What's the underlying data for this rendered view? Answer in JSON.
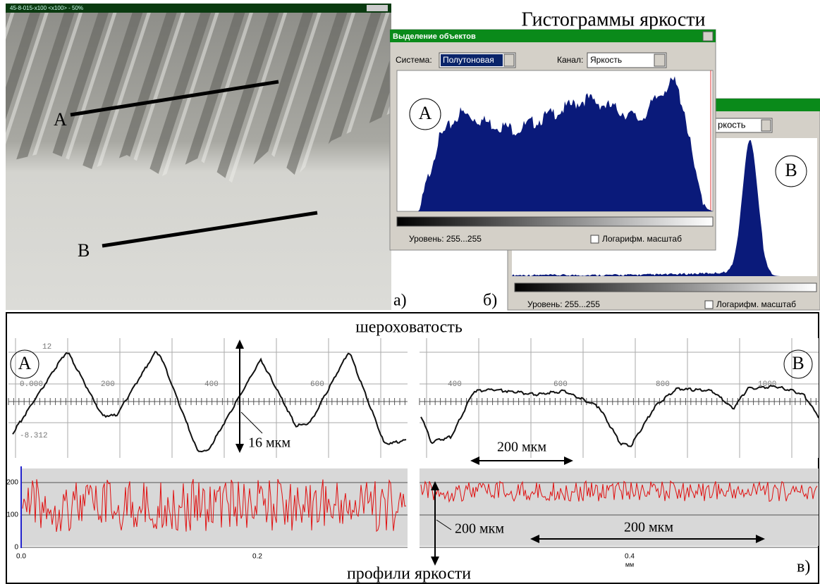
{
  "photo": {
    "window_title": "45-8-015-x100 <x100> - 50%",
    "label_a": "A",
    "label_b": "B",
    "panel_label": "а)"
  },
  "histograms": {
    "title": "Гистограммы яркости",
    "panel_label": "б)",
    "dialog_a": {
      "window_title": "Выделение объектов",
      "system_label": "Система:",
      "system_value": "Полутоновая",
      "channel_label": "Канал:",
      "channel_value": "Яркость",
      "marker": "A",
      "level": "Уровень: 255...255",
      "log_scale": "Логарифм. масштаб"
    },
    "dialog_b": {
      "channel_value": "ркость",
      "marker": "B",
      "level": "Уровень: 255...255",
      "log_scale": "Логарифм. масштаб"
    }
  },
  "roughness": {
    "title": "шероховатость",
    "left": {
      "marker": "A",
      "x_ticks": [
        "200",
        "400",
        "600"
      ],
      "y_top": "12",
      "y_zero": "0.000",
      "y_bottom": "-8.312",
      "annotation": "16 мкм"
    },
    "right": {
      "marker": "B",
      "x_ticks": [
        "400",
        "600",
        "800",
        "1000"
      ],
      "annotation": "200 мкм"
    }
  },
  "brightness": {
    "title": "профили яркости",
    "panel_label": "в)",
    "left": {
      "y_ticks": [
        "200",
        "100",
        "0"
      ],
      "x_ticks": [
        "0.0",
        "0.2"
      ]
    },
    "right": {
      "x_tick": "0.4",
      "x_unit": "мм",
      "annotation_vertical": "200 мкм",
      "annotation_horizontal": "200 мкм"
    }
  }
}
